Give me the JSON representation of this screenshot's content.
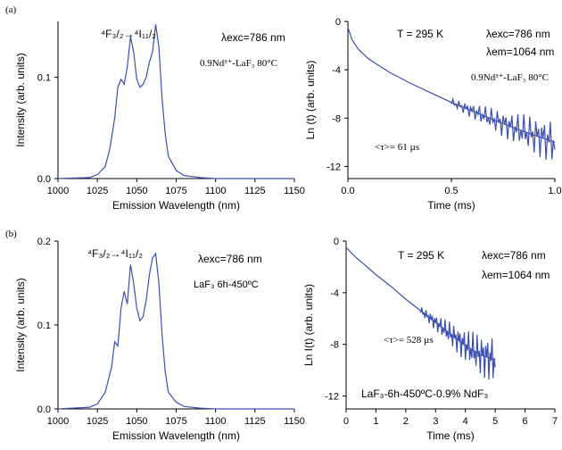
{
  "panel_labels": {
    "a": "(a)",
    "b": "(b)"
  },
  "colors": {
    "series": "#3a4fb0",
    "axis": "#000000"
  },
  "chart_data": [
    {
      "id": "a-em",
      "type": "line",
      "xlabel": "Emission Wavelength (nm)",
      "ylabel": "Intensity (arb. units)",
      "xlim": [
        1000,
        1150
      ],
      "ylim": [
        0,
        0.155
      ],
      "xticks": [
        1000,
        1025,
        1050,
        1075,
        1100,
        1125,
        1150
      ],
      "yticks": [
        0.0,
        0.1
      ],
      "ytick_labels": [
        "0.0",
        "0.1"
      ],
      "annotations": {
        "transition": "⁴F₃/₂→⁴I₁₁/₂",
        "exc": "λexc=786 nm",
        "sample": "0.9Nd³⁺-LaF₃ 80°C"
      },
      "series": [
        {
          "x": [
            1000,
            1020,
            1025,
            1030,
            1033,
            1036,
            1038,
            1040,
            1042,
            1044,
            1046,
            1048,
            1050,
            1052,
            1054,
            1056,
            1058,
            1060,
            1062,
            1064,
            1066,
            1068,
            1070,
            1075,
            1080,
            1090,
            1100,
            1150
          ],
          "y": [
            0.0,
            0.001,
            0.004,
            0.012,
            0.03,
            0.06,
            0.09,
            0.098,
            0.093,
            0.11,
            0.14,
            0.125,
            0.098,
            0.09,
            0.093,
            0.1,
            0.115,
            0.125,
            0.152,
            0.13,
            0.08,
            0.045,
            0.022,
            0.008,
            0.003,
            0.001,
            0.0,
            0.0
          ]
        }
      ]
    },
    {
      "id": "a-decay",
      "type": "line",
      "xlabel": "Time (ms)",
      "ylabel": "Ln (t) (arb. units)",
      "xlim": [
        0,
        1.0
      ],
      "ylim": [
        -13,
        0
      ],
      "xticks": [
        0.0,
        0.5,
        1.0
      ],
      "xtick_labels": [
        "0.0",
        "0.5",
        "1.0"
      ],
      "yticks": [
        0,
        -4,
        -8,
        -12
      ],
      "annotations": {
        "temp": "T = 295 K",
        "exc": "λexc=786 nm",
        "em": "λem=1064 nm",
        "sample": "0.9Nd³⁺-LaF₃ 80°C",
        "tau": "<τ>= 61 µs"
      },
      "series": [
        {
          "x": [
            0.0,
            0.02,
            0.05,
            0.1,
            0.2,
            0.3,
            0.4,
            0.5,
            0.6,
            0.7,
            0.8,
            0.9,
            1.0
          ],
          "y": [
            -0.5,
            -1.5,
            -2.3,
            -3.1,
            -4.2,
            -5.1,
            -5.9,
            -6.7,
            -7.4,
            -8.1,
            -8.8,
            -9.4,
            -10.0
          ]
        }
      ]
    },
    {
      "id": "b-em",
      "type": "line",
      "xlabel": "Emission Wavelength (nm)",
      "ylabel": "Intensity (arb. units)",
      "xlim": [
        1000,
        1150
      ],
      "ylim": [
        0,
        0.2
      ],
      "xticks": [
        1000,
        1025,
        1050,
        1075,
        1100,
        1125,
        1150
      ],
      "yticks": [
        0.0,
        0.1,
        0.2
      ],
      "ytick_labels": [
        "0.0",
        "0.1",
        "0.2"
      ],
      "annotations": {
        "transition": "⁴F₃/₂→⁴I₁₁/₂",
        "exc": "λexc=786 nm",
        "sample": "LaF₃ 6h-450ºC"
      },
      "series": [
        {
          "x": [
            1000,
            1020,
            1025,
            1030,
            1034,
            1036,
            1038,
            1040,
            1042,
            1044,
            1046,
            1048,
            1050,
            1052,
            1054,
            1056,
            1058,
            1060,
            1062,
            1064,
            1066,
            1068,
            1070,
            1075,
            1080,
            1090,
            1100,
            1150
          ],
          "y": [
            0.0,
            0.002,
            0.006,
            0.02,
            0.05,
            0.08,
            0.075,
            0.12,
            0.14,
            0.125,
            0.172,
            0.15,
            0.12,
            0.105,
            0.11,
            0.13,
            0.16,
            0.18,
            0.185,
            0.15,
            0.09,
            0.045,
            0.02,
            0.008,
            0.003,
            0.001,
            0.0,
            0.0
          ]
        }
      ]
    },
    {
      "id": "b-decay",
      "type": "line",
      "xlabel": "Time (ms)",
      "ylabel": "Ln I(t) (arb. units)",
      "xlim": [
        0,
        7
      ],
      "ylim": [
        -13,
        0
      ],
      "xticks": [
        0,
        1,
        2,
        3,
        4,
        5,
        6,
        7
      ],
      "yticks": [
        0,
        -4,
        -8,
        -12
      ],
      "annotations": {
        "temp": "T = 295 K",
        "exc": "λexc=786 nm",
        "em": "λem=1064 nm",
        "tau": "<τ>= 528 µs",
        "sample": "LaF₃-6h-450ºC-0.9% NdF₃"
      },
      "series": [
        {
          "x": [
            0.0,
            0.3,
            0.5,
            1.0,
            1.5,
            2.0,
            2.5,
            3.0,
            3.5,
            4.0,
            4.5,
            5.0
          ],
          "y": [
            -0.5,
            -1.2,
            -1.6,
            -2.6,
            -3.5,
            -4.5,
            -5.4,
            -6.3,
            -7.2,
            -8.1,
            -8.8,
            -9.2
          ]
        }
      ]
    }
  ]
}
